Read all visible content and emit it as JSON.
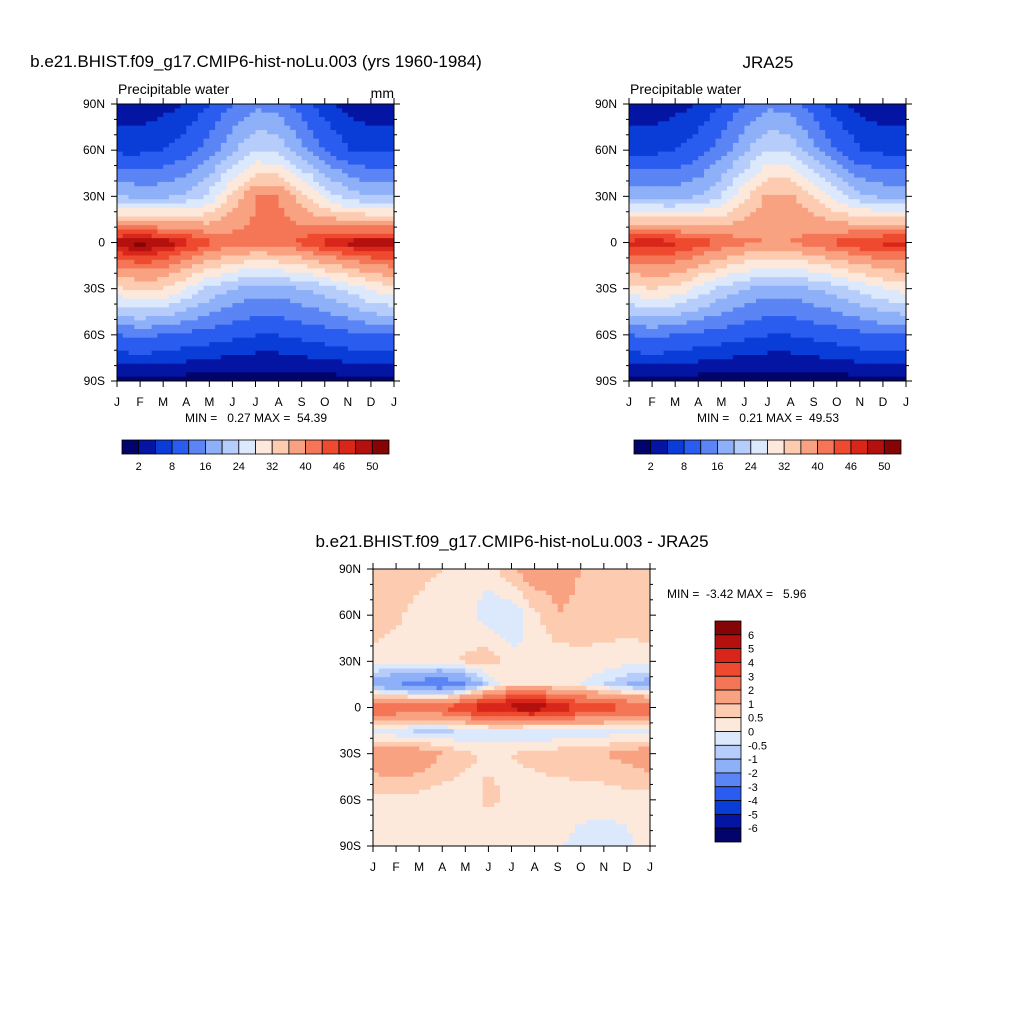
{
  "panels": [
    {
      "id": "model",
      "title": "b.e21.BHIST.f09_g17.CMIP6-hist-noLu.003 (yrs 1960-1984)",
      "left_label": "Precipitable water",
      "right_label": "mm",
      "stats": "MIN =   0.27 MAX =  54.39",
      "min": 0.27,
      "max": 54.39
    },
    {
      "id": "obs",
      "title": "JRA25",
      "left_label": "Precipitable water",
      "right_label": "",
      "stats": "MIN =   0.21 MAX =  49.53",
      "min": 0.21,
      "max": 49.53
    },
    {
      "id": "diff",
      "title": "b.e21.BHIST.f09_g17.CMIP6-hist-noLu.003 - JRA25",
      "left_label": "",
      "right_label": "",
      "stats": "MIN =  -3.42 MAX =   5.96",
      "min": -3.42,
      "max": 5.96
    }
  ],
  "axes": {
    "x_ticks": [
      "J",
      "F",
      "M",
      "A",
      "M",
      "J",
      "J",
      "A",
      "S",
      "O",
      "N",
      "D",
      "J"
    ],
    "y_ticks": [
      "90N",
      "60N",
      "30N",
      "0",
      "30S",
      "60S",
      "90S"
    ],
    "y_values": [
      90,
      60,
      30,
      0,
      -30,
      -60,
      -90
    ]
  },
  "colorbars": {
    "field": {
      "orientation": "horizontal",
      "levels": [
        2,
        5,
        8,
        12,
        16,
        20,
        24,
        28,
        32,
        36,
        40,
        43,
        46,
        48,
        50
      ],
      "tick_labels": [
        "2",
        "8",
        "16",
        "24",
        "32",
        "40",
        "46",
        "50"
      ],
      "colors": [
        "#02036b",
        "#0515a3",
        "#0a3cd8",
        "#2a5cf0",
        "#5b84f5",
        "#8db0f8",
        "#b6ccfa",
        "#dce8fc",
        "#fde9dc",
        "#fccbb0",
        "#f9a282",
        "#f57656",
        "#ee4a2f",
        "#d9261a",
        "#b3100e",
        "#850405"
      ]
    },
    "diff": {
      "orientation": "vertical",
      "levels": [
        -6,
        -5,
        -4,
        -3,
        -2,
        -1,
        -0.5,
        0,
        0.5,
        1,
        2,
        3,
        4,
        5,
        6
      ],
      "tick_labels": [
        "6",
        "5",
        "4",
        "3",
        "2",
        "1",
        "0.5",
        "0",
        "-0.5",
        "-1",
        "-2",
        "-3",
        "-4",
        "-5",
        "-6"
      ],
      "colors": [
        "#02036b",
        "#0515a3",
        "#0a3cd8",
        "#2a5cf0",
        "#5b84f5",
        "#8db0f8",
        "#b6ccfa",
        "#dce8fc",
        "#fde9dc",
        "#fccbb0",
        "#f9a282",
        "#f57656",
        "#ee4a2f",
        "#d9261a",
        "#b3100e",
        "#850405"
      ]
    }
  },
  "chart_data": [
    {
      "type": "heatmap",
      "title": "b.e21.BHIST.f09_g17.CMIP6-hist-noLu.003 (yrs 1960-1984)",
      "variable": "Precipitable water",
      "units": "mm",
      "x": [
        "J",
        "F",
        "M",
        "A",
        "M",
        "J",
        "J",
        "A",
        "S",
        "O",
        "N",
        "D",
        "J"
      ],
      "y": [
        90,
        60,
        30,
        0,
        -30,
        -60,
        -90
      ],
      "xlim": [
        0,
        12
      ],
      "ylim": [
        -90,
        90
      ],
      "values": [
        [
          3,
          3,
          4,
          5,
          8,
          12,
          15,
          14,
          10,
          6,
          4,
          3,
          3
        ],
        [
          7,
          7,
          8,
          10,
          14,
          19,
          24,
          23,
          17,
          12,
          8,
          7,
          7
        ],
        [
          20,
          19,
          19,
          21,
          25,
          33,
          40,
          40,
          34,
          27,
          22,
          20,
          20
        ],
        [
          50,
          51,
          50,
          47,
          44,
          42,
          41,
          42,
          44,
          47,
          49,
          50,
          50
        ],
        [
          31,
          33,
          32,
          28,
          23,
          20,
          18,
          18,
          20,
          22,
          25,
          29,
          31
        ],
        [
          12,
          13,
          12,
          11,
          10,
          9,
          8,
          8,
          9,
          10,
          11,
          12,
          12
        ],
        [
          1,
          1,
          1,
          0.5,
          0.4,
          0.3,
          0.3,
          0.3,
          0.4,
          0.5,
          0.8,
          1,
          1
        ]
      ],
      "min": 0.27,
      "max": 54.39
    },
    {
      "type": "heatmap",
      "title": "JRA25",
      "variable": "Precipitable water",
      "x": [
        "J",
        "F",
        "M",
        "A",
        "M",
        "J",
        "J",
        "A",
        "S",
        "O",
        "N",
        "D",
        "J"
      ],
      "y": [
        90,
        60,
        30,
        0,
        -30,
        -60,
        -90
      ],
      "xlim": [
        0,
        12
      ],
      "ylim": [
        -90,
        90
      ],
      "values": [
        [
          3,
          3,
          4,
          5,
          8,
          12,
          15,
          14,
          10,
          6,
          4,
          3,
          3
        ],
        [
          7,
          7,
          8,
          10,
          14,
          19,
          24,
          23,
          17,
          12,
          8,
          7,
          7
        ],
        [
          19,
          18,
          18,
          20,
          24,
          31,
          37,
          37,
          32,
          26,
          21,
          19,
          19
        ],
        [
          47,
          48,
          47,
          45,
          43,
          41,
          40,
          40,
          42,
          44,
          46,
          47,
          47
        ],
        [
          30,
          32,
          31,
          27,
          23,
          20,
          18,
          18,
          20,
          22,
          25,
          28,
          30
        ],
        [
          12,
          13,
          12,
          11,
          10,
          9,
          8,
          8,
          9,
          10,
          11,
          12,
          12
        ],
        [
          1,
          1,
          1,
          0.5,
          0.4,
          0.3,
          0.3,
          0.3,
          0.4,
          0.5,
          0.8,
          1,
          1
        ]
      ],
      "min": 0.21,
      "max": 49.53
    },
    {
      "type": "heatmap",
      "title": "b.e21.BHIST.f09_g17.CMIP6-hist-noLu.003 - JRA25",
      "x": [
        "J",
        "F",
        "M",
        "A",
        "M",
        "J",
        "J",
        "A",
        "S",
        "O",
        "N",
        "D",
        "J"
      ],
      "y": [
        90,
        60,
        30,
        0,
        -30,
        -60,
        -90
      ],
      "xlim": [
        0,
        12
      ],
      "ylim": [
        -90,
        90
      ],
      "values": [
        [
          0.8,
          0.8,
          0.7,
          0.5,
          0.3,
          0.2,
          1.0,
          1.5,
          1.2,
          1.0,
          0.8,
          0.8,
          0.8
        ],
        [
          0.8,
          0.6,
          0.3,
          0.1,
          0.2,
          -0.3,
          -0.5,
          0.4,
          1.0,
          0.9,
          0.8,
          0.8,
          0.8
        ],
        [
          0.3,
          0.2,
          0.2,
          0.3,
          0.6,
          0.8,
          0.2,
          0.0,
          0.2,
          0.3,
          0.3,
          0.2,
          0.3
        ],
        [
          -1.5,
          -2.0,
          -2.5,
          -3.0,
          -2.0,
          -0.5,
          0.5,
          0.3,
          0.2,
          0.0,
          -0.5,
          -1.0,
          -1.5
        ],
        [
          3.0,
          3.0,
          2.8,
          3.0,
          4.0,
          5.0,
          5.5,
          5.8,
          5.0,
          4.0,
          3.5,
          3.2,
          3.0
        ],
        [
          -0.3,
          -0.5,
          -0.6,
          -0.6,
          -0.5,
          -0.3,
          -0.4,
          -0.5,
          -0.5,
          -0.4,
          -0.3,
          -0.3,
          -0.3
        ],
        [
          1.5,
          1.8,
          1.5,
          1.0,
          0.6,
          0.4,
          0.5,
          0.6,
          0.8,
          0.9,
          1.0,
          1.2,
          1.5
        ],
        [
          0.3,
          0.3,
          0.3,
          0.2,
          0.3,
          0.6,
          0.4,
          0.3,
          0.2,
          0.2,
          0.2,
          0.3,
          0.3
        ],
        [
          0.3,
          0.2,
          0.2,
          0.2,
          0.1,
          0.2,
          0.2,
          0.2,
          0.1,
          -0.2,
          -0.3,
          -0.2,
          0.3
        ]
      ],
      "y_rows": [
        90,
        60,
        30,
        15,
        0,
        -15,
        -30,
        -60,
        -90
      ],
      "min": -3.42,
      "max": 5.96
    }
  ]
}
